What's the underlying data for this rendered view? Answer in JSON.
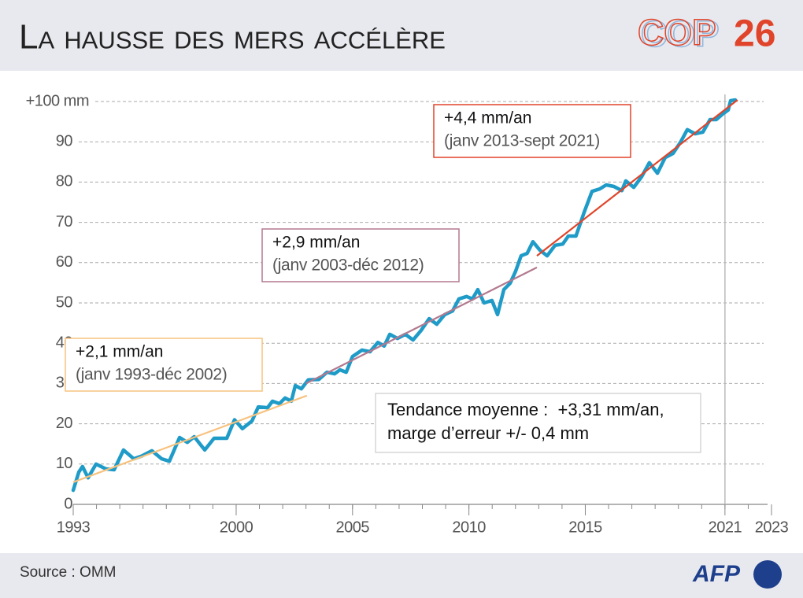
{
  "chart_data": {
    "type": "line",
    "title": "La hausse des mers accélère",
    "logo": {
      "cop": "COP",
      "number": "26"
    },
    "source": "Source : OMM",
    "brand": "AFP",
    "color": "#1f9bc8",
    "x": [
      1993.0,
      1993.24,
      1993.4,
      1993.64,
      1993.98,
      1994.4,
      1994.76,
      1995.16,
      1995.6,
      1995.94,
      1996.38,
      1996.8,
      1997.13,
      1997.57,
      1997.9,
      1998.2,
      1998.65,
      1999.05,
      1999.6,
      1999.93,
      2000.27,
      2000.68,
      2000.95,
      2001.35,
      2001.56,
      2001.86,
      2002.1,
      2002.37,
      2002.54,
      2002.8,
      2003.1,
      2003.55,
      2003.9,
      2004.23,
      2004.46,
      2004.73,
      2005.0,
      2005.41,
      2005.75,
      2006.09,
      2006.36,
      2006.6,
      2006.93,
      2007.27,
      2007.6,
      2007.95,
      2008.29,
      2008.62,
      2008.96,
      2009.3,
      2009.57,
      2009.9,
      2010.15,
      2010.38,
      2010.65,
      2010.99,
      2011.23,
      2011.5,
      2011.77,
      2012.0,
      2012.24,
      2012.5,
      2012.75,
      2013.05,
      2013.36,
      2013.7,
      2014.03,
      2014.27,
      2014.6,
      2014.95,
      2015.29,
      2015.62,
      2015.9,
      2016.23,
      2016.57,
      2016.74,
      2017.08,
      2017.42,
      2017.75,
      2018.1,
      2018.43,
      2018.77,
      2019.1,
      2019.38,
      2019.72,
      2020.05,
      2020.36,
      2020.63,
      2020.9,
      2021.14,
      2021.24,
      2021.44
    ],
    "values": [
      3.5,
      8,
      9.4,
      6.6,
      10,
      8.8,
      8.6,
      13.5,
      11.3,
      12,
      13.3,
      11.3,
      10.7,
      16.6,
      15.4,
      16.8,
      13.5,
      16.4,
      16.4,
      21,
      18.8,
      20.7,
      24.2,
      24,
      25.6,
      25,
      26.4,
      25.6,
      29.5,
      28.7,
      30.9,
      31,
      32.8,
      32.4,
      33.4,
      32.8,
      36.7,
      38.3,
      37.9,
      40.2,
      39.3,
      42.2,
      41.2,
      42.2,
      40.8,
      43.2,
      46.1,
      44.7,
      47.1,
      48,
      51,
      51.6,
      51,
      53.3,
      50,
      50.6,
      47.1,
      53.3,
      54.9,
      57.8,
      61.7,
      62.3,
      65.2,
      63.1,
      61.7,
      64.3,
      64.6,
      66.6,
      66.6,
      72.5,
      77.7,
      78.3,
      79.3,
      78.9,
      77.9,
      80.3,
      78.7,
      81.3,
      84.8,
      82.2,
      86.1,
      87.1,
      90,
      93,
      92,
      92.4,
      95.5,
      95.5,
      96.9,
      97.9,
      100.2,
      100.4
    ],
    "trends": [
      {
        "x": [
          1993.0,
          2003.04
        ],
        "values": [
          5.5,
          27.0
        ],
        "color": "#f7c27e",
        "label": "+2,1 mm/an",
        "period": "(janv 1993-déc 2002)"
      },
      {
        "x": [
          2003.0,
          2012.92
        ],
        "values": [
          30.0,
          58.8
        ],
        "color": "#b3798f",
        "label": "+2,9 mm/an",
        "period": "(janv 2003-déc 2012)"
      },
      {
        "x": [
          2012.92,
          2021.54
        ],
        "values": [
          61.7,
          100.4
        ],
        "color": "#e0442a",
        "label": "+4,4 mm/an",
        "period": "(janv 2013-sept 2021)"
      }
    ],
    "annotation": [
      "Tendance moyenne :  +3,31 mm/an,",
      "marge d’erreur +/- 0,4 mm"
    ],
    "vline": 2021,
    "xlim": [
      1993,
      2023
    ],
    "xticks": [
      1993,
      2000,
      2005,
      2010,
      2015,
      2021,
      2023
    ],
    "xminorticks": [
      1993,
      1994,
      1995,
      1996,
      1997,
      1998,
      1999,
      2000,
      2001,
      2002,
      2003,
      2004,
      2005,
      2006,
      2007,
      2008,
      2009,
      2010,
      2011,
      2012,
      2013,
      2014,
      2015,
      2016,
      2017,
      2018,
      2019,
      2020,
      2021,
      2022,
      2023
    ],
    "ylim": [
      0,
      100
    ],
    "yticks": [
      0,
      10,
      20,
      30,
      40,
      50,
      60,
      70,
      80,
      90,
      {
        "value": 100,
        "label": "+100 mm"
      }
    ],
    "grid": true
  }
}
